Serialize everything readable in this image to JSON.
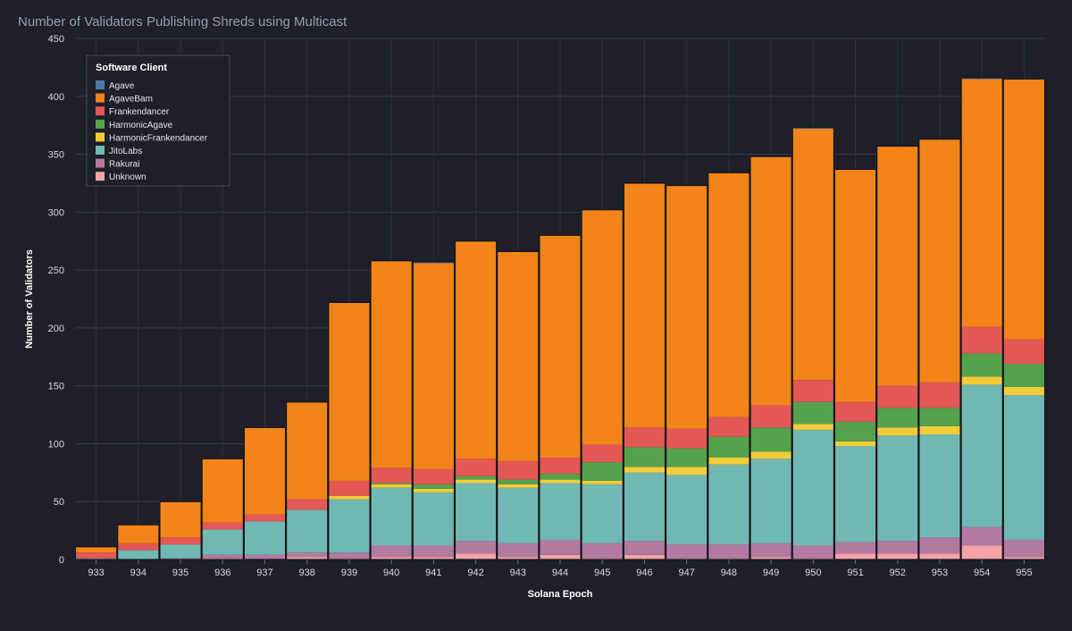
{
  "chart_data": {
    "type": "bar",
    "stacked": true,
    "title": "Number of Validators Publishing Shreds using Multicast",
    "xlabel": "Solana Epoch",
    "ylabel": "Number of Validators",
    "ylim": [
      0,
      450
    ],
    "yticks": [
      0,
      50,
      100,
      150,
      200,
      250,
      300,
      350,
      400,
      450
    ],
    "grid": true,
    "legend_title": "Software Client",
    "legend_position": "top-left",
    "categories": [
      "933",
      "934",
      "935",
      "936",
      "937",
      "938",
      "939",
      "940",
      "941",
      "942",
      "943",
      "944",
      "945",
      "946",
      "947",
      "948",
      "949",
      "950",
      "951",
      "952",
      "953",
      "954",
      "955"
    ],
    "series": [
      {
        "name": "Unknown",
        "color": "#f4a3a8",
        "values": [
          0,
          0,
          0,
          1,
          0,
          2,
          1,
          2,
          2,
          5,
          2,
          4,
          1,
          4,
          1,
          1,
          2,
          1,
          5,
          5,
          5,
          12,
          2
        ]
      },
      {
        "name": "Rakurai",
        "color": "#b27aa1",
        "values": [
          0,
          0,
          1,
          3,
          4,
          4,
          5,
          10,
          10,
          11,
          12,
          13,
          13,
          12,
          12,
          12,
          12,
          11,
          10,
          11,
          14,
          16,
          15
        ]
      },
      {
        "name": "JitoLabs",
        "color": "#71b8b3",
        "values": [
          1,
          8,
          12,
          22,
          29,
          37,
          46,
          50,
          46,
          50,
          48,
          49,
          51,
          59,
          60,
          69,
          73,
          100,
          83,
          91,
          89,
          123,
          125
        ]
      },
      {
        "name": "HarmonicFrankendancer",
        "color": "#f2cd39",
        "values": [
          0,
          0,
          0,
          0,
          0,
          0,
          3,
          3,
          3,
          3,
          3,
          3,
          3,
          5,
          7,
          6,
          6,
          5,
          4,
          7,
          7,
          7,
          7
        ]
      },
      {
        "name": "HarmonicAgave",
        "color": "#55a24c",
        "values": [
          0,
          0,
          0,
          0,
          0,
          0,
          0,
          1,
          4,
          3,
          4,
          5,
          16,
          17,
          16,
          18,
          21,
          19,
          17,
          17,
          16,
          20,
          20
        ]
      },
      {
        "name": "Frankendancer",
        "color": "#e35756",
        "values": [
          5,
          6,
          6,
          6,
          6,
          9,
          13,
          13,
          13,
          15,
          16,
          14,
          15,
          17,
          17,
          17,
          19,
          19,
          17,
          19,
          22,
          23,
          21
        ]
      },
      {
        "name": "AgaveBam",
        "color": "#f28419",
        "values": [
          5,
          16,
          31,
          55,
          75,
          84,
          154,
          179,
          178,
          188,
          181,
          192,
          203,
          211,
          210,
          211,
          215,
          217,
          201,
          207,
          210,
          214,
          225
        ]
      },
      {
        "name": "Agave",
        "color": "#4e79a7",
        "values": [
          0,
          0,
          0,
          0,
          0,
          0,
          0,
          0,
          1,
          0,
          0,
          0,
          0,
          0,
          0,
          0,
          0,
          1,
          0,
          0,
          0,
          1,
          0
        ]
      }
    ],
    "legend_order": [
      "Agave",
      "AgaveBam",
      "Frankendancer",
      "HarmonicAgave",
      "HarmonicFrankendancer",
      "JitoLabs",
      "Rakurai",
      "Unknown"
    ]
  }
}
